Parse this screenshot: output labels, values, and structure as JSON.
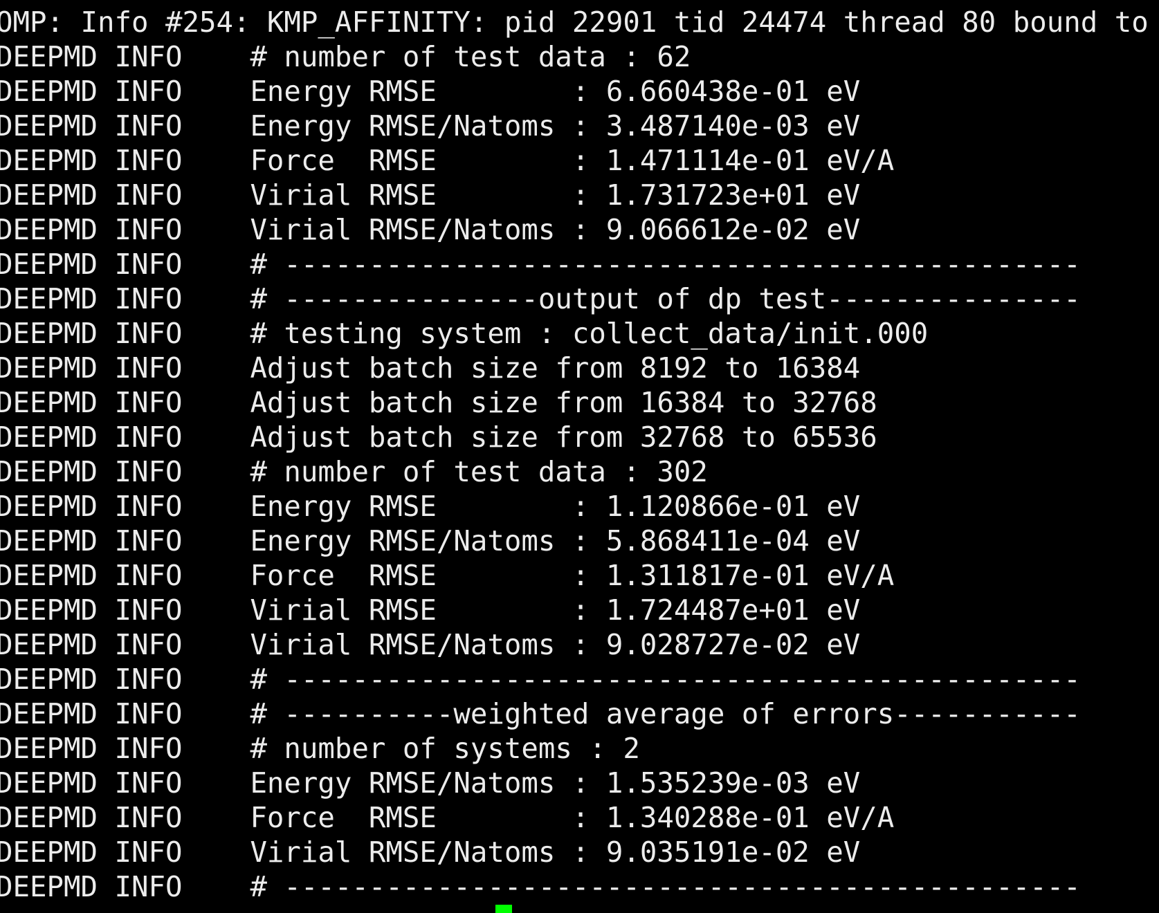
{
  "terminal": {
    "lines": [
      "OMP: Info #254: KMP_AFFINITY: pid 22901 tid 24474 thread 80 bound to",
      "DEEPMD INFO    # number of test data : 62",
      "DEEPMD INFO    Energy RMSE        : 6.660438e-01 eV",
      "DEEPMD INFO    Energy RMSE/Natoms : 3.487140e-03 eV",
      "DEEPMD INFO    Force  RMSE        : 1.471114e-01 eV/A",
      "DEEPMD INFO    Virial RMSE        : 1.731723e+01 eV",
      "DEEPMD INFO    Virial RMSE/Natoms : 9.066612e-02 eV",
      "DEEPMD INFO    # -----------------------------------------------",
      "DEEPMD INFO    # ---------------output of dp test---------------",
      "DEEPMD INFO    # testing system : collect_data/init.000",
      "DEEPMD INFO    Adjust batch size from 8192 to 16384",
      "DEEPMD INFO    Adjust batch size from 16384 to 32768",
      "DEEPMD INFO    Adjust batch size from 32768 to 65536",
      "DEEPMD INFO    # number of test data : 302",
      "DEEPMD INFO    Energy RMSE        : 1.120866e-01 eV",
      "DEEPMD INFO    Energy RMSE/Natoms : 5.868411e-04 eV",
      "DEEPMD INFO    Force  RMSE        : 1.311817e-01 eV/A",
      "DEEPMD INFO    Virial RMSE        : 1.724487e+01 eV",
      "DEEPMD INFO    Virial RMSE/Natoms : 9.028727e-02 eV",
      "DEEPMD INFO    # -----------------------------------------------",
      "DEEPMD INFO    # ----------weighted average of errors-----------",
      "DEEPMD INFO    # number of systems : 2",
      "DEEPMD INFO    Energy RMSE/Natoms : 1.535239e-03 eV",
      "DEEPMD INFO    Force  RMSE        : 1.340288e-01 eV/A",
      "DEEPMD INFO    Virial RMSE/Natoms : 9.035191e-02 eV",
      "DEEPMD INFO    # -----------------------------------------------"
    ],
    "cursor_color": "#00ff00"
  }
}
